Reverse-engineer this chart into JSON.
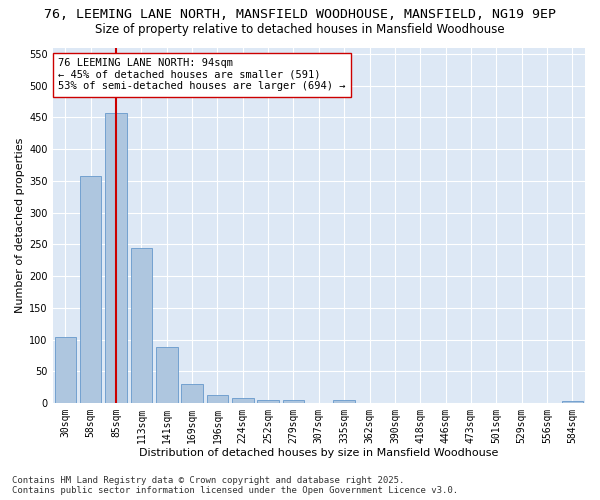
{
  "title": "76, LEEMING LANE NORTH, MANSFIELD WOODHOUSE, MANSFIELD, NG19 9EP",
  "subtitle": "Size of property relative to detached houses in Mansfield Woodhouse",
  "xlabel": "Distribution of detached houses by size in Mansfield Woodhouse",
  "ylabel": "Number of detached properties",
  "categories": [
    "30sqm",
    "58sqm",
    "85sqm",
    "113sqm",
    "141sqm",
    "169sqm",
    "196sqm",
    "224sqm",
    "252sqm",
    "279sqm",
    "307sqm",
    "335sqm",
    "362sqm",
    "390sqm",
    "418sqm",
    "446sqm",
    "473sqm",
    "501sqm",
    "529sqm",
    "556sqm",
    "584sqm"
  ],
  "values": [
    105,
    357,
    457,
    245,
    88,
    31,
    13,
    8,
    5,
    5,
    0,
    5,
    0,
    0,
    0,
    0,
    0,
    0,
    0,
    0,
    4
  ],
  "bar_color": "#aec6df",
  "bar_edge_color": "#6699cc",
  "vline_x": 2,
  "vline_color": "#cc0000",
  "annotation_text": "76 LEEMING LANE NORTH: 94sqm\n← 45% of detached houses are smaller (591)\n53% of semi-detached houses are larger (694) →",
  "annotation_box_color": "#ffffff",
  "annotation_box_edge": "#cc0000",
  "ylim": [
    0,
    560
  ],
  "yticks": [
    0,
    50,
    100,
    150,
    200,
    250,
    300,
    350,
    400,
    450,
    500,
    550
  ],
  "background_color": "#dde8f5",
  "grid_color": "#ffffff",
  "fig_background": "#ffffff",
  "footer": "Contains HM Land Registry data © Crown copyright and database right 2025.\nContains public sector information licensed under the Open Government Licence v3.0.",
  "title_fontsize": 9.5,
  "subtitle_fontsize": 8.5,
  "xlabel_fontsize": 8,
  "ylabel_fontsize": 8,
  "tick_fontsize": 7,
  "annotation_fontsize": 7.5,
  "footer_fontsize": 6.5
}
